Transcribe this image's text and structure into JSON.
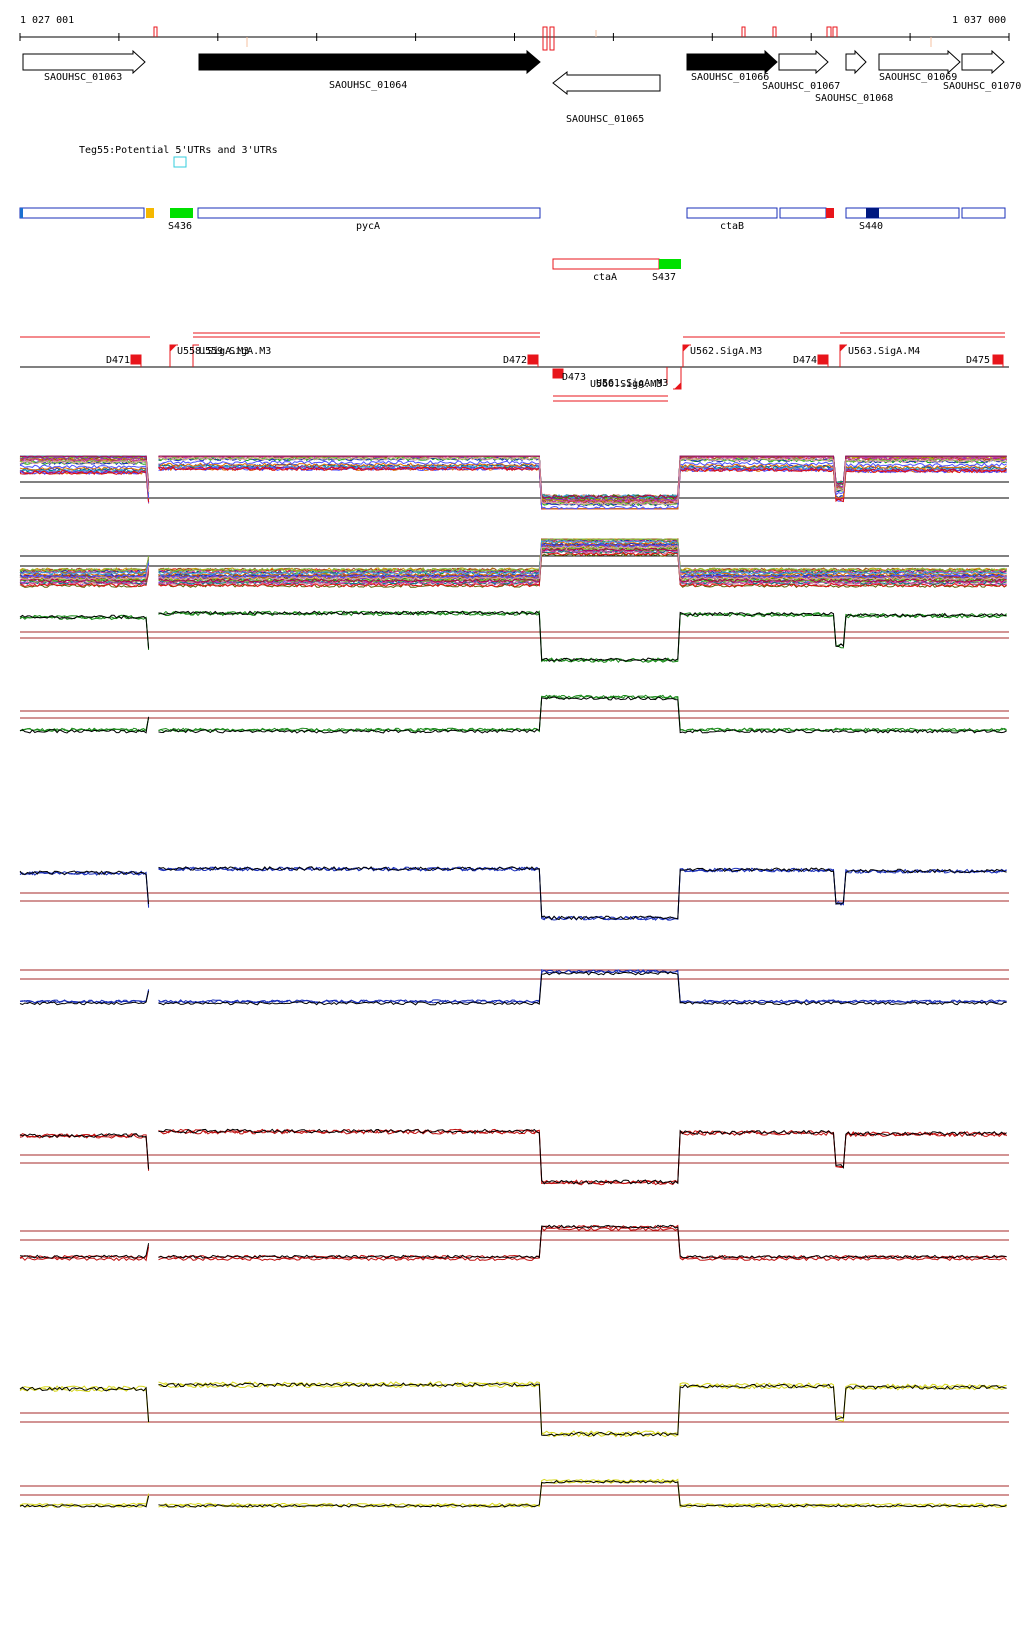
{
  "coords": {
    "start": "1 027 001",
    "end": "1 037 000"
  },
  "genes": [
    {
      "label": "SAOUHSC_01063",
      "strand": "+",
      "filled": false
    },
    {
      "label": "SAOUHSC_01064",
      "strand": "+",
      "filled": true
    },
    {
      "label": "SAOUHSC_01065",
      "strand": "-",
      "filled": false
    },
    {
      "label": "SAOUHSC_01066",
      "strand": "+",
      "filled": true
    },
    {
      "label": "SAOUHSC_01067",
      "strand": "+",
      "filled": false
    },
    {
      "label": "SAOUHSC_01068",
      "strand": "+",
      "filled": false
    },
    {
      "label": "SAOUHSC_01069",
      "strand": "+",
      "filled": false
    },
    {
      "label": "SAOUHSC_01070",
      "strand": "+",
      "filled": false
    }
  ],
  "utr_track": {
    "label": "Teg55:Potential 5'UTRs and 3'UTRs"
  },
  "annotation_labels": {
    "s436": "S436",
    "pyca": "pycA",
    "ctab": "ctaB",
    "s440": "S440",
    "ctaa": "ctaA",
    "s437": "S437"
  },
  "promoter_labels": {
    "d471": "D471",
    "u558": "U558.SigA.M3",
    "u559": "U559.SigA.M3",
    "d472": "D472",
    "d473": "D473",
    "u560": "U560.SigA.M3",
    "u561": "U561.SigA.M3",
    "u562": "U562.SigA.M3",
    "d474": "D474",
    "u563": "U563.SigA.M4",
    "d475": "D475"
  },
  "colors": {
    "gene_border": "#000000",
    "annotation_blue": "#1a2fb8",
    "annotation_red": "#e8151b",
    "green_feature": "#00e000",
    "orange_feature": "#f5b800",
    "navy_feature": "#001880",
    "promoter_red": "#e8151b",
    "threshold_brown": "#a52a2a",
    "green_series": "#1a8a1a",
    "blue_series": "#1a2fb8",
    "red_series": "#c01010",
    "yellow_series": "#d8d820"
  },
  "chart_data": {
    "type": "line",
    "x_unit": "genome position (bp)",
    "x_range": [
      1027001,
      1037000
    ],
    "segments": [
      {
        "from": 1027001,
        "to": 1028280,
        "plus": 0.85,
        "minus": 0.25
      },
      {
        "from": 1028280,
        "to": 1028380,
        "plus": 0.3,
        "minus": 0.5
      },
      {
        "from": 1028380,
        "to": 1032260,
        "plus": 0.92,
        "minus": 0.25
      },
      {
        "from": 1032260,
        "to": 1033660,
        "plus": 0.1,
        "minus": 0.85
      },
      {
        "from": 1033660,
        "to": 1035250,
        "plus": 0.9,
        "minus": 0.25
      },
      {
        "from": 1035250,
        "to": 1035350,
        "plus": 0.35,
        "minus": 0.25
      },
      {
        "from": 1035350,
        "to": 1037000,
        "plus": 0.88,
        "minus": 0.25
      }
    ],
    "panels": [
      {
        "name": "",
        "strand": "+",
        "color": "multi",
        "n_series": 30
      },
      {
        "name": "",
        "strand": "-",
        "color": "multi",
        "n_series": 30
      },
      {
        "name": "",
        "strand": "+",
        "color": "green",
        "n_series": 3
      },
      {
        "name": "",
        "strand": "-",
        "color": "green",
        "n_series": 3
      },
      {
        "name": "",
        "strand": "+",
        "color": "blue",
        "n_series": 3
      },
      {
        "name": "",
        "strand": "-",
        "color": "blue",
        "n_series": 3
      },
      {
        "name": "",
        "strand": "+",
        "color": "red",
        "n_series": 3
      },
      {
        "name": "",
        "strand": "-",
        "color": "red",
        "n_series": 3
      },
      {
        "name": "",
        "strand": "+",
        "color": "yellow",
        "n_series": 3
      },
      {
        "name": "",
        "strand": "-",
        "color": "yellow",
        "n_series": 3
      }
    ]
  }
}
